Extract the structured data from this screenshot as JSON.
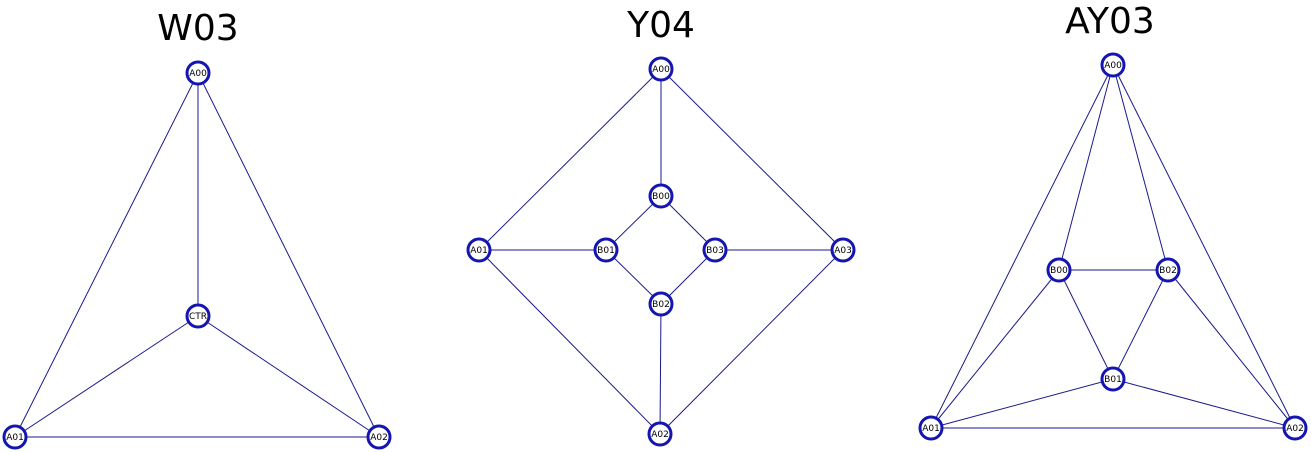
{
  "colors": {
    "edge": "#1a1a8c",
    "node_stroke": "#1515b0",
    "node_fill": "#ffffff",
    "label": "#000000",
    "background": "#ffffff"
  },
  "graphs": [
    {
      "id": "w03",
      "title": "W03",
      "nodes": [
        "A00",
        "CTR",
        "A01",
        "A02"
      ],
      "edges": [
        [
          "A00",
          "CTR"
        ],
        [
          "A00",
          "A01"
        ],
        [
          "A00",
          "A02"
        ],
        [
          "CTR",
          "A01"
        ],
        [
          "CTR",
          "A02"
        ],
        [
          "A01",
          "A02"
        ]
      ]
    },
    {
      "id": "y04",
      "title": "Y04",
      "nodes": [
        "A00",
        "B00",
        "A01",
        "B01",
        "B03",
        "A03",
        "B02",
        "A02"
      ],
      "edges": [
        [
          "A00",
          "B00"
        ],
        [
          "A00",
          "A01"
        ],
        [
          "A00",
          "A03"
        ],
        [
          "B00",
          "B01"
        ],
        [
          "B00",
          "B03"
        ],
        [
          "A01",
          "B01"
        ],
        [
          "B03",
          "A03"
        ],
        [
          "B01",
          "B02"
        ],
        [
          "B03",
          "B02"
        ],
        [
          "B02",
          "A02"
        ],
        [
          "A01",
          "A02"
        ],
        [
          "A03",
          "A02"
        ]
      ]
    },
    {
      "id": "ay03",
      "title": "AY03",
      "nodes": [
        "A00",
        "B00",
        "B02",
        "B01",
        "A01",
        "A02"
      ],
      "edges": [
        [
          "A00",
          "B00"
        ],
        [
          "A00",
          "B02"
        ],
        [
          "A00",
          "A01"
        ],
        [
          "A00",
          "A02"
        ],
        [
          "B00",
          "B02"
        ],
        [
          "B00",
          "B01"
        ],
        [
          "B02",
          "B01"
        ],
        [
          "B00",
          "A01"
        ],
        [
          "B02",
          "A02"
        ],
        [
          "B01",
          "A01"
        ],
        [
          "B01",
          "A02"
        ],
        [
          "A01",
          "A02"
        ]
      ]
    }
  ]
}
